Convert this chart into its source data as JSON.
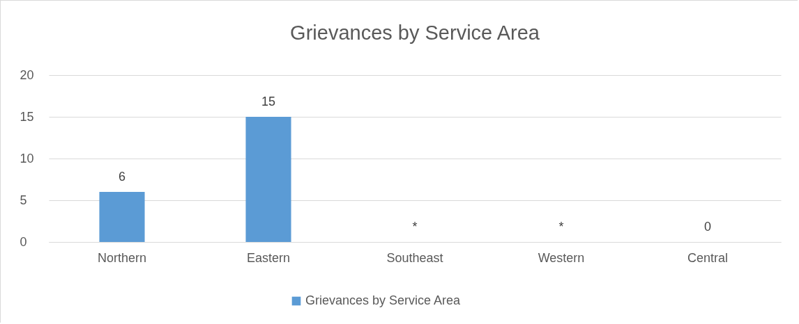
{
  "chart_data": {
    "type": "bar",
    "title": "Grievances by Service Area",
    "categories": [
      "Northern",
      "Eastern",
      "Southeast",
      "Western",
      "Central"
    ],
    "series": [
      {
        "name": "Grievances by Service Area",
        "color": "#5b9bd5",
        "values": [
          6,
          15,
          null,
          null,
          0
        ],
        "value_labels": [
          "6",
          "15",
          "*",
          "*",
          "0"
        ]
      }
    ],
    "ylim": [
      0,
      20
    ],
    "yticks": [
      0,
      5,
      10,
      15,
      20
    ],
    "grid": true,
    "legend": "bottom"
  }
}
